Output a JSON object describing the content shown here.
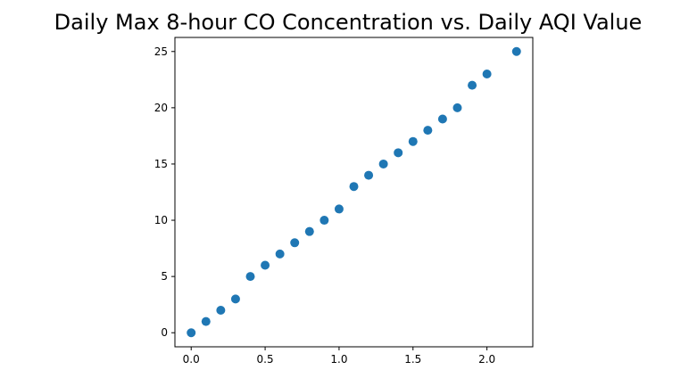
{
  "chart_data": {
    "type": "scatter",
    "title": "Daily Max 8-hour CO Concentration vs. Daily AQI Value",
    "xlabel": "",
    "ylabel": "",
    "xlim": [
      -0.11,
      2.31
    ],
    "ylim": [
      -1.25,
      26.25
    ],
    "grid": false,
    "legend": "none",
    "marker_color": "#1f77b4",
    "xticks": [
      {
        "value": 0.0,
        "label": "0.0"
      },
      {
        "value": 0.5,
        "label": "0.5"
      },
      {
        "value": 1.0,
        "label": "1.0"
      },
      {
        "value": 1.5,
        "label": "1.5"
      },
      {
        "value": 2.0,
        "label": "2.0"
      }
    ],
    "yticks": [
      {
        "value": 0,
        "label": "0"
      },
      {
        "value": 5,
        "label": "5"
      },
      {
        "value": 10,
        "label": "10"
      },
      {
        "value": 15,
        "label": "15"
      },
      {
        "value": 20,
        "label": "20"
      },
      {
        "value": 25,
        "label": "25"
      }
    ],
    "points": [
      {
        "x": 0.0,
        "y": 0
      },
      {
        "x": 0.1,
        "y": 1
      },
      {
        "x": 0.2,
        "y": 2
      },
      {
        "x": 0.3,
        "y": 3
      },
      {
        "x": 0.4,
        "y": 5
      },
      {
        "x": 0.5,
        "y": 6
      },
      {
        "x": 0.6,
        "y": 7
      },
      {
        "x": 0.7,
        "y": 8
      },
      {
        "x": 0.8,
        "y": 9
      },
      {
        "x": 0.9,
        "y": 10
      },
      {
        "x": 1.0,
        "y": 11
      },
      {
        "x": 1.1,
        "y": 13
      },
      {
        "x": 1.2,
        "y": 14
      },
      {
        "x": 1.3,
        "y": 15
      },
      {
        "x": 1.4,
        "y": 16
      },
      {
        "x": 1.5,
        "y": 17
      },
      {
        "x": 1.6,
        "y": 18
      },
      {
        "x": 1.7,
        "y": 19
      },
      {
        "x": 1.8,
        "y": 20
      },
      {
        "x": 1.9,
        "y": 22
      },
      {
        "x": 2.0,
        "y": 23
      },
      {
        "x": 2.2,
        "y": 25
      }
    ]
  }
}
